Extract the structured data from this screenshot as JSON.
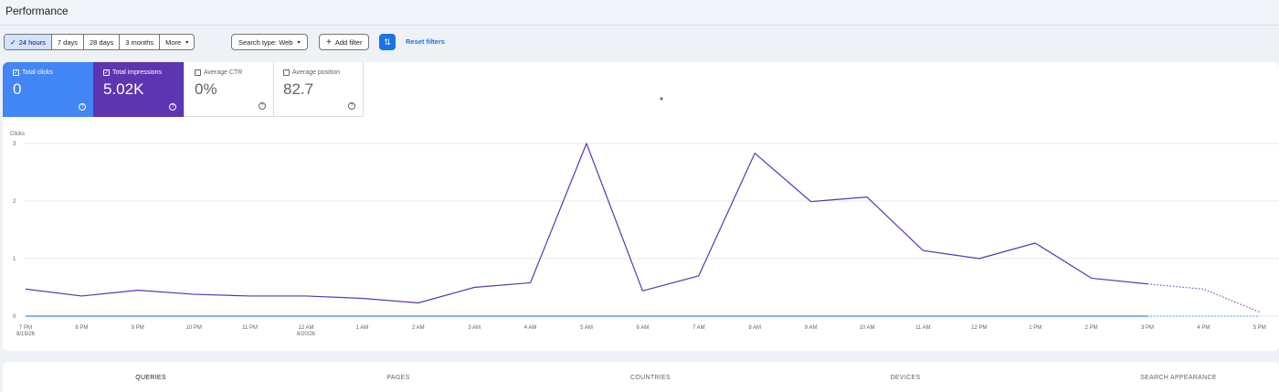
{
  "header": {
    "title": "Performance"
  },
  "filters": {
    "date_ranges": [
      {
        "label": "24 hours",
        "active": true
      },
      {
        "label": "7 days",
        "active": false
      },
      {
        "label": "28 days",
        "active": false
      },
      {
        "label": "3 months",
        "active": false
      }
    ],
    "more_label": "More",
    "search_type_label": "Search type: Web",
    "add_filter_label": "Add filter",
    "reset_label": "Reset filters"
  },
  "metrics": {
    "clicks": {
      "label": "Total clicks",
      "value": "0",
      "checked": true,
      "color": "#4285f4"
    },
    "impressions": {
      "label": "Total impressions",
      "value": "5.02K",
      "checked": true,
      "color": "#5e35b1"
    },
    "ctr": {
      "label": "Average CTR",
      "value": "0%",
      "checked": false
    },
    "position": {
      "label": "Average position",
      "value": "82.7",
      "checked": false
    }
  },
  "chart_data": {
    "type": "line",
    "ylabel": "Clicks",
    "yticks": [
      "0",
      "1",
      "2",
      "3"
    ],
    "ylim": [
      0,
      3
    ],
    "x": [
      "7 PM",
      "8 PM",
      "9 PM",
      "10 PM",
      "11 PM",
      "12 AM",
      "1 AM",
      "2 AM",
      "3 AM",
      "4 AM",
      "5 AM",
      "6 AM",
      "7 AM",
      "8 AM",
      "9 AM",
      "10 AM",
      "11 AM",
      "12 PM",
      "1 PM",
      "2 PM",
      "3 PM",
      "4 PM",
      "5 PM"
    ],
    "x_sub": [
      "8/19/26",
      "",
      "",
      "",
      "",
      "8/20/26",
      "",
      "",
      "",
      "",
      "",
      "",
      "",
      "",
      "",
      "",
      "",
      "",
      "",
      "",
      "",
      "",
      ""
    ],
    "series": [
      {
        "color": "#5e35b1",
        "values": [
          0.47,
          0.35,
          0.45,
          0.38,
          0.35,
          0.35,
          0.31,
          0.23,
          0.5,
          0.58,
          3.0,
          0.44,
          0.7,
          2.83,
          1.99,
          2.07,
          1.14,
          1.0,
          1.27,
          0.66,
          0.56,
          0.47,
          0.07
        ],
        "projected_from_index": 20
      },
      {
        "color": "#4285f4",
        "values": [
          0,
          0,
          0,
          0,
          0,
          0,
          0,
          0,
          0,
          0,
          0,
          0,
          0,
          0,
          0,
          0,
          0,
          0,
          0,
          0,
          0,
          0,
          0
        ],
        "projected_from_index": 20
      }
    ],
    "grid": true
  },
  "bottom_tabs": [
    {
      "label": "QUERIES",
      "active": true
    },
    {
      "label": "PAGES",
      "active": false
    },
    {
      "label": "COUNTRIES",
      "active": false
    },
    {
      "label": "DEVICES",
      "active": false
    },
    {
      "label": "SEARCH APPEARANCE",
      "active": false
    }
  ],
  "icons": {
    "check": "✓",
    "caret": "▾",
    "plus": "+",
    "filter": "⇅",
    "help": "?"
  }
}
